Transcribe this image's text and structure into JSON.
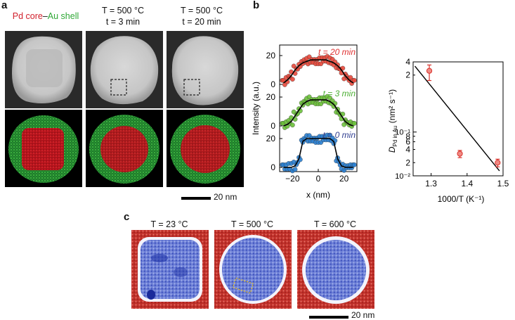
{
  "panel_labels": {
    "a": "a",
    "b": "b",
    "c": "c"
  },
  "panel_a": {
    "header_core": "Pd core",
    "header_dash": "–",
    "header_shell": "Au shell",
    "col2_line1": "T = 500 °C",
    "col2_line2": "t = 3 min",
    "col3_line1": "T = 500 °C",
    "col3_line2": "t = 20 min",
    "scale_bar": "20 nm",
    "colors": {
      "core": "#d1202c",
      "shell": "#2fa836"
    }
  },
  "panel_b": {
    "profile_ylabel": "Intensity (a.u.)",
    "profile_xlabel": "x (nm)",
    "profile_xticks": [
      "−20",
      "0",
      "20"
    ],
    "profile_yticks": [
      "0",
      "20"
    ],
    "trace_labels": [
      "t = 20 min",
      "t = 3 min",
      "t = 0 min"
    ],
    "trace_colors": [
      "#e8493b",
      "#6cc23a",
      "#2a7fd1"
    ],
    "trace_label_colors": [
      "#e03131",
      "#4caf34",
      "#2f3d8f"
    ],
    "arrhenius_ylabel_main": "D",
    "arrhenius_ylabel_sub": "Pd in Au",
    "arrhenius_ylabel_unit": "(nm² s⁻¹)",
    "arrhenius_xlabel": "1000/T (K⁻¹)",
    "arrhenius_xticks": [
      "1.3",
      "1.4",
      "1.5"
    ],
    "arrhenius_yticks": [
      "4",
      "2",
      "10⁻¹",
      "8",
      "6",
      "4",
      "2",
      "10⁻²"
    ]
  },
  "panel_c": {
    "header1": "T = 23 °C",
    "header2": "T = 500 °C",
    "header3": "T = 600 °C",
    "scale_bar": "20 nm"
  },
  "chart_data": [
    {
      "type": "scatter",
      "title": "",
      "xlabel": "x (nm)",
      "ylabel": "Intensity (a.u.)",
      "xlim": [
        -30,
        30
      ],
      "series": [
        {
          "name": "t = 20 min",
          "x": [
            -27,
            -24,
            -21,
            -18,
            -15,
            -12,
            -9,
            -6,
            -3,
            0,
            3,
            6,
            9,
            12,
            15,
            18,
            21,
            24,
            27
          ],
          "values": [
            1,
            3,
            6,
            10,
            13,
            15,
            16,
            17,
            17,
            17,
            17,
            17,
            16,
            15,
            13,
            10,
            6,
            3,
            1
          ]
        },
        {
          "name": "t = 3 min",
          "x": [
            -27,
            -24,
            -21,
            -18,
            -15,
            -12,
            -9,
            -6,
            -3,
            0,
            3,
            6,
            9,
            12,
            15,
            18,
            21,
            24,
            27
          ],
          "values": [
            0,
            1,
            3,
            7,
            11,
            15,
            17,
            18,
            18,
            18,
            18,
            18,
            17,
            15,
            11,
            7,
            3,
            1,
            0
          ]
        },
        {
          "name": "t = 0 min",
          "x": [
            -27,
            -24,
            -21,
            -18,
            -15,
            -12,
            -9,
            -6,
            -3,
            0,
            3,
            6,
            9,
            12,
            15,
            18,
            21,
            24,
            27
          ],
          "values": [
            0,
            0,
            0,
            1,
            6,
            18,
            20,
            20,
            20,
            20,
            20,
            20,
            20,
            18,
            6,
            1,
            0,
            0,
            0
          ]
        }
      ]
    },
    {
      "type": "scatter",
      "title": "",
      "xlabel": "1000/T (K⁻¹)",
      "ylabel": "D Pd in Au (nm² s⁻¹)",
      "xlim": [
        1.25,
        1.5
      ],
      "ylim": [
        0.01,
        4
      ],
      "yscale": "log",
      "points": [
        {
          "x": 1.295,
          "y": 2.5,
          "err_low": 1.5,
          "err_high": 3.4
        },
        {
          "x": 1.38,
          "y": 0.032,
          "err_low": 0.026,
          "err_high": 0.038
        },
        {
          "x": 1.485,
          "y": 0.02,
          "err_low": 0.016,
          "err_high": 0.024
        }
      ],
      "fit_line": {
        "x": [
          1.255,
          1.49
        ],
        "y": [
          3.2,
          0.013
        ]
      }
    }
  ]
}
